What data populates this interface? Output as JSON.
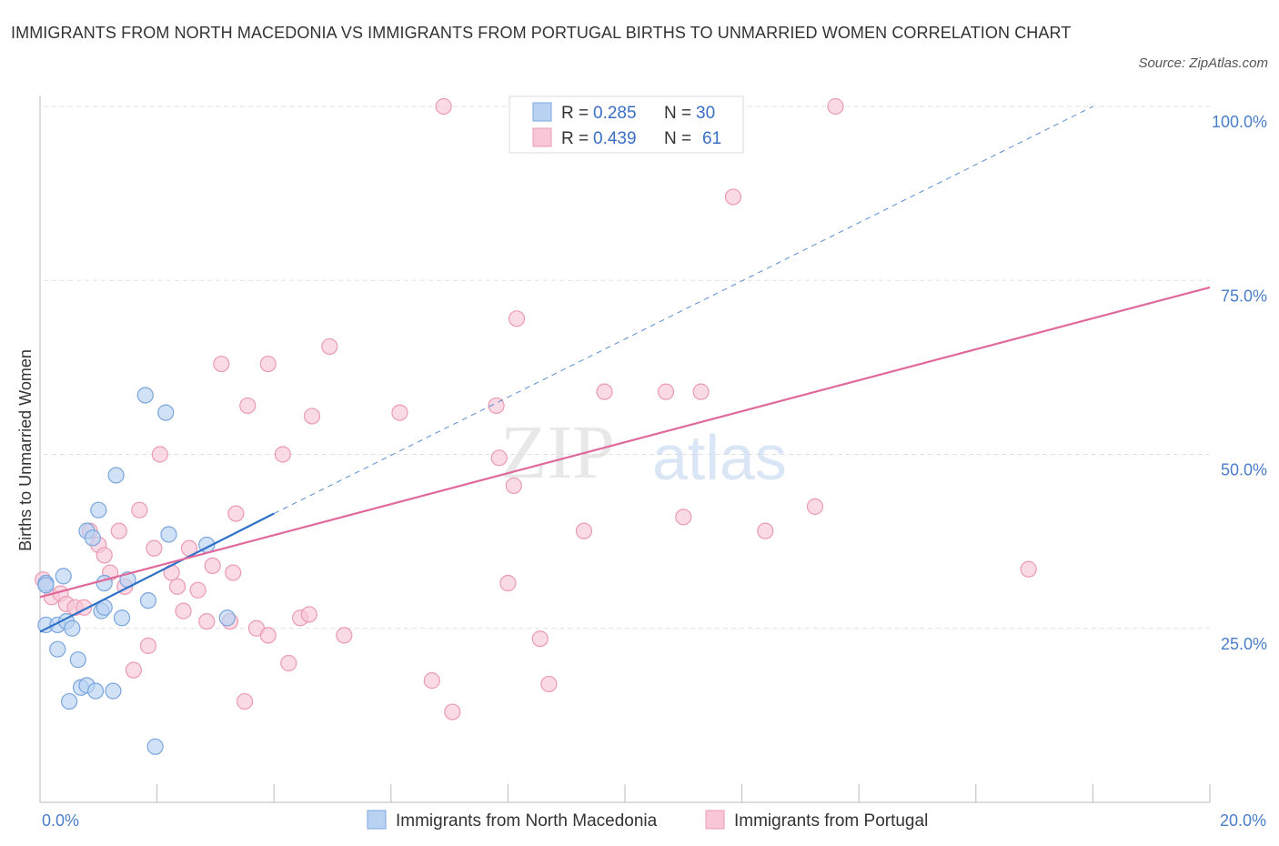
{
  "title": "IMMIGRANTS FROM NORTH MACEDONIA VS IMMIGRANTS FROM PORTUGAL BIRTHS TO UNMARRIED WOMEN CORRELATION CHART",
  "source": "Source: ZipAtlas.com",
  "watermark": {
    "zip": "ZIP",
    "atlas": "atlas"
  },
  "colors": {
    "blue_fill": "#b9d2f2",
    "blue_stroke": "#7aa5dd",
    "blue_line": "#2f72c8",
    "pink_fill": "#f8c6d6",
    "pink_stroke": "#eb9ab5",
    "pink_line": "#e0689a",
    "grid": "#e1e1e1",
    "tick_text": "#4a7ec8"
  },
  "legend": {
    "r_label": "R =",
    "n_label": "N =",
    "series": [
      {
        "r": "0.285",
        "n": "30"
      },
      {
        "r": "0.439",
        "n": "61"
      }
    ]
  },
  "chart_data": {
    "type": "scatter",
    "title": "IMMIGRANTS FROM NORTH MACEDONIA VS IMMIGRANTS FROM PORTUGAL BIRTHS TO UNMARRIED WOMEN CORRELATION CHART",
    "xlabel": "",
    "ylabel": "Births to Unmarried Women",
    "xlim": [
      0,
      20
    ],
    "ylim": [
      0,
      100
    ],
    "x_tick_labels": [
      "0.0%",
      "20.0%"
    ],
    "y_tick_labels": [
      "25.0%",
      "50.0%",
      "75.0%",
      "100.0%"
    ],
    "y_ticks": [
      25,
      50,
      75,
      100
    ],
    "series": [
      {
        "name": "Immigrants from North Macedonia",
        "color": "blue",
        "trend": {
          "x": [
            0,
            4.0
          ],
          "y": [
            24.5,
            41.5
          ],
          "dashed_extension_to": [
            18.0,
            100
          ]
        },
        "points": [
          [
            0.1,
            25.5
          ],
          [
            0.1,
            31.5
          ],
          [
            0.3,
            25.5
          ],
          [
            0.3,
            22.0
          ],
          [
            0.4,
            32.5
          ],
          [
            0.45,
            26.0
          ],
          [
            0.5,
            14.5
          ],
          [
            0.55,
            25.0
          ],
          [
            0.65,
            20.5
          ],
          [
            0.7,
            16.5
          ],
          [
            0.8,
            39.0
          ],
          [
            0.8,
            16.8
          ],
          [
            0.9,
            38.0
          ],
          [
            0.95,
            16.0
          ],
          [
            1.0,
            42.0
          ],
          [
            1.05,
            27.5
          ],
          [
            1.1,
            28.0
          ],
          [
            1.1,
            31.5
          ],
          [
            1.25,
            16.0
          ],
          [
            1.3,
            47.0
          ],
          [
            1.4,
            26.5
          ],
          [
            1.5,
            32.0
          ],
          [
            1.8,
            58.5
          ],
          [
            1.85,
            29.0
          ],
          [
            1.97,
            8.0
          ],
          [
            2.15,
            56.0
          ],
          [
            2.2,
            38.5
          ],
          [
            2.85,
            37.0
          ],
          [
            3.2,
            26.5
          ],
          [
            0.1,
            31.2
          ]
        ]
      },
      {
        "name": "Immigrants from Portugal",
        "color": "pink",
        "trend": {
          "x": [
            0,
            20
          ],
          "y": [
            29.5,
            74.0
          ]
        },
        "points": [
          [
            0.05,
            32.0
          ],
          [
            0.2,
            29.5
          ],
          [
            0.35,
            30.0
          ],
          [
            0.45,
            28.5
          ],
          [
            0.6,
            28.0
          ],
          [
            0.75,
            28.0
          ],
          [
            0.85,
            39.0
          ],
          [
            1.0,
            37.0
          ],
          [
            1.1,
            35.5
          ],
          [
            1.2,
            33.0
          ],
          [
            1.35,
            39.0
          ],
          [
            1.45,
            31.0
          ],
          [
            1.6,
            19.0
          ],
          [
            1.7,
            42.0
          ],
          [
            1.85,
            22.5
          ],
          [
            1.95,
            36.5
          ],
          [
            2.05,
            50.0
          ],
          [
            2.25,
            33.0
          ],
          [
            2.35,
            31.0
          ],
          [
            2.45,
            27.5
          ],
          [
            2.55,
            36.5
          ],
          [
            2.7,
            30.5
          ],
          [
            2.85,
            26.0
          ],
          [
            2.95,
            34.0
          ],
          [
            3.1,
            63.0
          ],
          [
            3.25,
            26.0
          ],
          [
            3.3,
            33.0
          ],
          [
            3.35,
            41.5
          ],
          [
            3.5,
            14.5
          ],
          [
            3.55,
            57.0
          ],
          [
            3.7,
            25.0
          ],
          [
            3.9,
            24.0
          ],
          [
            3.9,
            63.0
          ],
          [
            4.15,
            50.0
          ],
          [
            4.25,
            20.0
          ],
          [
            4.45,
            26.5
          ],
          [
            4.6,
            27.0
          ],
          [
            4.65,
            55.5
          ],
          [
            4.95,
            65.5
          ],
          [
            5.2,
            24.0
          ],
          [
            6.15,
            56.0
          ],
          [
            6.7,
            17.5
          ],
          [
            6.9,
            100.0
          ],
          [
            7.05,
            13.0
          ],
          [
            7.8,
            57.0
          ],
          [
            7.85,
            49.5
          ],
          [
            8.0,
            31.5
          ],
          [
            8.1,
            45.5
          ],
          [
            8.15,
            69.5
          ],
          [
            8.55,
            23.5
          ],
          [
            8.7,
            17.0
          ],
          [
            9.3,
            39.0
          ],
          [
            9.65,
            59.0
          ],
          [
            10.7,
            59.0
          ],
          [
            11.0,
            41.0
          ],
          [
            11.3,
            59.0
          ],
          [
            11.85,
            87.0
          ],
          [
            12.4,
            39.0
          ],
          [
            13.25,
            42.5
          ],
          [
            13.6,
            100.0
          ],
          [
            16.9,
            33.5
          ]
        ]
      }
    ]
  }
}
